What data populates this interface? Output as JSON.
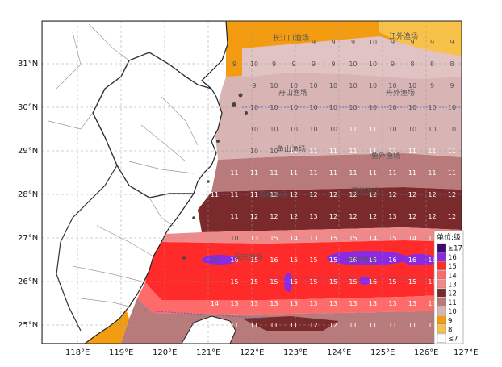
{
  "map": {
    "lat_labels": [
      "31°N",
      "30°N",
      "29°N",
      "28°N",
      "27°N",
      "26°N",
      "25°N"
    ],
    "lon_labels": [
      "118°E",
      "119°E",
      "120°E",
      "121°E",
      "122°E",
      "123°E",
      "124°E",
      "125°E",
      "126°E",
      "127°E"
    ],
    "zones": [
      "长江口渔场",
      "江外渔场",
      "舟山渔场",
      "舟外渔场",
      "鱼山渔场",
      "鱼外渔场",
      "温台渔场",
      "温外渔场",
      "闽东渔场",
      "闽外渔场"
    ],
    "legend": {
      "title": "单位:级",
      "items": [
        {
          "label": "≥17",
          "color": "#3d0c6e"
        },
        {
          "label": "16",
          "color": "#8a2be2"
        },
        {
          "label": "15",
          "color": "#ff2a2a"
        },
        {
          "label": "14",
          "color": "#ff6a6a"
        },
        {
          "label": "13",
          "color": "#f08a8a"
        },
        {
          "label": "12",
          "color": "#7a2a2a"
        },
        {
          "label": "11",
          "color": "#b87a7a"
        },
        {
          "label": "10",
          "color": "#d8b4b4"
        },
        {
          "label": "9",
          "color": "#f39c12"
        },
        {
          "label": "8",
          "color": "#f8c24a"
        },
        {
          "label": "≤7",
          "color": "#ffffff"
        }
      ]
    },
    "grid_rows": [
      {
        "lat": 31.5,
        "values": [
          "9",
          "9",
          "9",
          "10",
          "9",
          "9",
          "9",
          "9"
        ]
      },
      {
        "lat": 31.0,
        "values": [
          "9",
          "10",
          "9",
          "9",
          "9",
          "9",
          "10",
          "10",
          "9",
          "8",
          "8",
          "8"
        ]
      },
      {
        "lat": 30.5,
        "values": [
          "9",
          "10",
          "10",
          "10",
          "10",
          "10",
          "10",
          "10",
          "10",
          "9",
          "9"
        ]
      },
      {
        "lat": 30.0,
        "values": [
          "10",
          "10",
          "10",
          "10",
          "10",
          "10",
          "10",
          "10",
          "10",
          "10",
          "10"
        ]
      },
      {
        "lat": 29.5,
        "values": [
          "10",
          "10",
          "10",
          "10",
          "10",
          "11",
          "11",
          "10",
          "10",
          "10",
          "10"
        ]
      },
      {
        "lat": 29.0,
        "values": [
          "10",
          "10",
          "11",
          "11",
          "11",
          "11",
          "11",
          "11",
          "11",
          "11",
          "11"
        ]
      },
      {
        "lat": 28.5,
        "values": [
          "11",
          "11",
          "11",
          "11",
          "11",
          "11",
          "11",
          "11",
          "11",
          "11",
          "11",
          "11"
        ]
      },
      {
        "lat": 28.0,
        "values": [
          "11",
          "11",
          "11",
          "12",
          "12",
          "12",
          "12",
          "12",
          "12",
          "12",
          "12",
          "12",
          "12"
        ]
      },
      {
        "lat": 27.5,
        "values": [
          "11",
          "12",
          "12",
          "12",
          "13",
          "12",
          "12",
          "12",
          "13",
          "12",
          "12",
          "12"
        ]
      },
      {
        "lat": 27.0,
        "values": [
          "10",
          "13",
          "15",
          "14",
          "13",
          "15",
          "15",
          "14",
          "15",
          "14",
          "13",
          "13"
        ]
      },
      {
        "lat": 26.5,
        "values": [
          "10",
          "16",
          "15",
          "16",
          "15",
          "15",
          "15",
          "16",
          "15",
          "16",
          "16",
          "16",
          "15"
        ]
      },
      {
        "lat": 26.0,
        "values": [
          "15",
          "15",
          "15",
          "15",
          "15",
          "15",
          "15",
          "16",
          "15",
          "15",
          "15",
          "15"
        ]
      },
      {
        "lat": 25.5,
        "values": [
          "14",
          "13",
          "13",
          "13",
          "13",
          "13",
          "13",
          "13",
          "13",
          "13",
          "13",
          "13",
          "12"
        ]
      },
      {
        "lat": 25.0,
        "values": [
          "11",
          "11",
          "11",
          "11",
          "12",
          "12",
          "11",
          "11",
          "11",
          "11",
          "11",
          "11"
        ]
      }
    ]
  }
}
